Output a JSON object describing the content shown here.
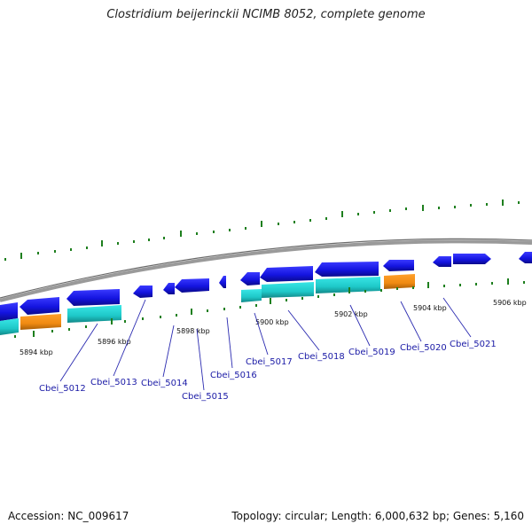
{
  "title": "Clostridium beijerinckii NCIMB 8052, complete genome",
  "footer": {
    "accession": "Accession: NC_009617",
    "summary": "Topology: circular; Length: 6,000,632 bp; Genes: 5,160"
  },
  "colors": {
    "cds": "#1a1ae6",
    "gene": "#22d3d3",
    "rna": "#f28c1c",
    "tick": "#1e7f1e",
    "label": "#1a1aa6",
    "backbone": "#8a8a8a"
  },
  "kbp_labels": [
    "5894 kbp",
    "5896 kbp",
    "5898 kbp",
    "5900 kbp",
    "5902 kbp",
    "5904 kbp",
    "5906 kbp"
  ],
  "gene_labels": [
    "Cbei_5012",
    "Cbei_5013",
    "Cbei_5014",
    "Cbei_5015",
    "Cbei_5016",
    "Cbei_5017",
    "Cbei_5018",
    "Cbei_5019",
    "Cbei_5020",
    "Cbei_5021"
  ]
}
